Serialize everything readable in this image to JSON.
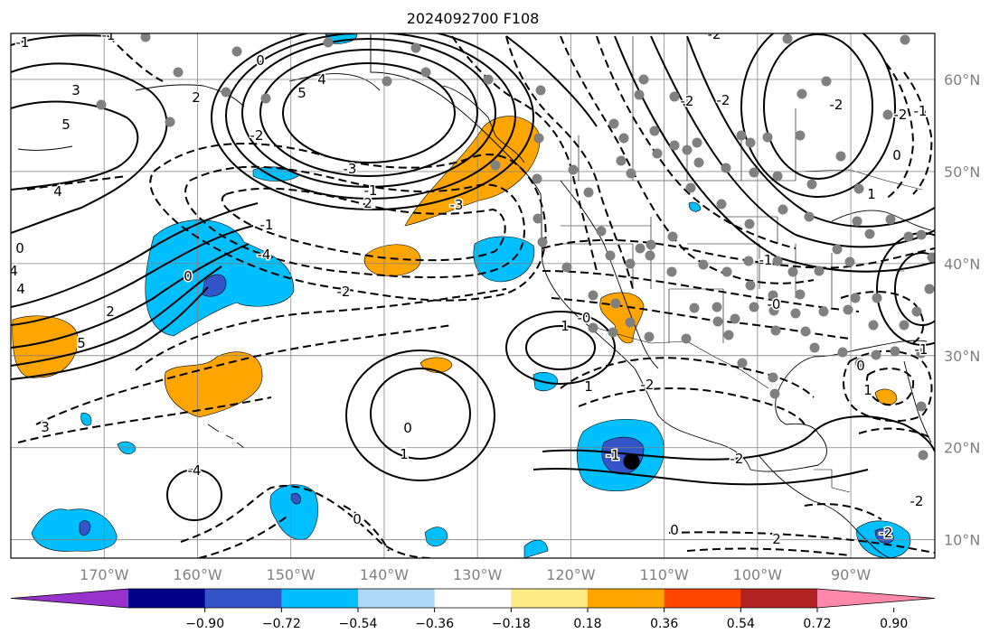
{
  "title": "2024092700 F108",
  "map": {
    "lon_range": [
      -180,
      -81
    ],
    "lat_range": [
      8,
      65
    ],
    "lon_ticks": [
      {
        "value": -170,
        "label": "170°W"
      },
      {
        "value": -160,
        "label": "160°W"
      },
      {
        "value": -150,
        "label": "150°W"
      },
      {
        "value": -140,
        "label": "140°W"
      },
      {
        "value": -130,
        "label": "130°W"
      },
      {
        "value": -120,
        "label": "120°W"
      },
      {
        "value": -110,
        "label": "110°W"
      },
      {
        "value": -100,
        "label": "100°W"
      },
      {
        "value": -90,
        "label": "90°W"
      }
    ],
    "lat_ticks": [
      {
        "value": 60,
        "label": "60°N"
      },
      {
        "value": 50,
        "label": "50°N"
      },
      {
        "value": 40,
        "label": "40°N"
      },
      {
        "value": 30,
        "label": "30°N"
      },
      {
        "value": 20,
        "label": "20°N"
      },
      {
        "value": 10,
        "label": "10°N"
      }
    ],
    "grid": true,
    "contour_labels": [
      "-1",
      "-1",
      "0",
      "3",
      "5",
      "4",
      "5",
      "4",
      "2",
      "-2",
      "-3",
      "-1",
      "2",
      "-4",
      "-3",
      "-2",
      "-1",
      "0",
      "1",
      "-0",
      "0",
      "1",
      "-4",
      "3",
      "4",
      "4",
      "2",
      "5",
      "0",
      "-2",
      "-2",
      "-2",
      "-2",
      "-2",
      "0",
      "-1",
      "1",
      "-1",
      "-0",
      "1",
      "-2",
      "-1",
      "-2",
      "0",
      "2",
      "0",
      "-1",
      "0",
      "1",
      "-2",
      "-2"
    ],
    "storm_marker": {
      "lon": -113.5,
      "lat": 18.5
    }
  },
  "colorbar": {
    "colors": [
      "#9932cc",
      "#00008b",
      "#3455c8",
      "#00bfff",
      "#add8f5",
      "#ffffff",
      "#ffeb86",
      "#ffa500",
      "#ff4500",
      "#b22222",
      "#ff88aa"
    ],
    "tick_labels": [
      "−0.90",
      "−0.72",
      "−0.54",
      "−0.36",
      "−0.18",
      "0.18",
      "0.36",
      "0.54",
      "0.72",
      "0.90"
    ]
  }
}
